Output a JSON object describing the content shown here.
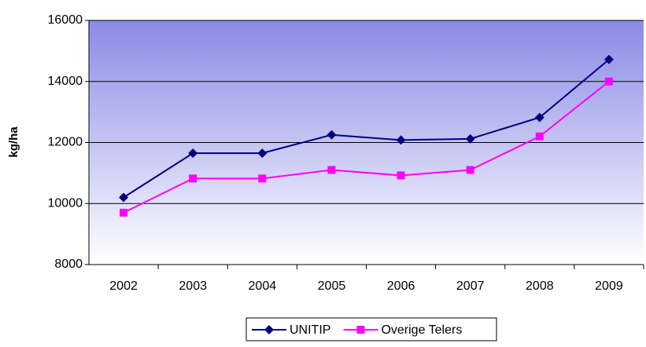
{
  "chart_data": {
    "type": "line",
    "y_label": "kg/ha",
    "categories": [
      "2002",
      "2003",
      "2004",
      "2005",
      "2006",
      "2007",
      "2008",
      "2009"
    ],
    "series": [
      {
        "name": "UNITIP",
        "color": "#000080",
        "marker": "diamond",
        "values": [
          10200,
          11650,
          11650,
          12250,
          12080,
          12120,
          12820,
          14720
        ]
      },
      {
        "name": "Overige Telers",
        "color": "#ff00ff",
        "marker": "square",
        "values": [
          9700,
          10820,
          10820,
          11100,
          10920,
          11100,
          12200,
          14000
        ]
      }
    ],
    "ylim": [
      8000,
      16000
    ],
    "yticks": [
      8000,
      10000,
      12000,
      14000,
      16000
    ],
    "grid": true,
    "legend": "bottom"
  }
}
